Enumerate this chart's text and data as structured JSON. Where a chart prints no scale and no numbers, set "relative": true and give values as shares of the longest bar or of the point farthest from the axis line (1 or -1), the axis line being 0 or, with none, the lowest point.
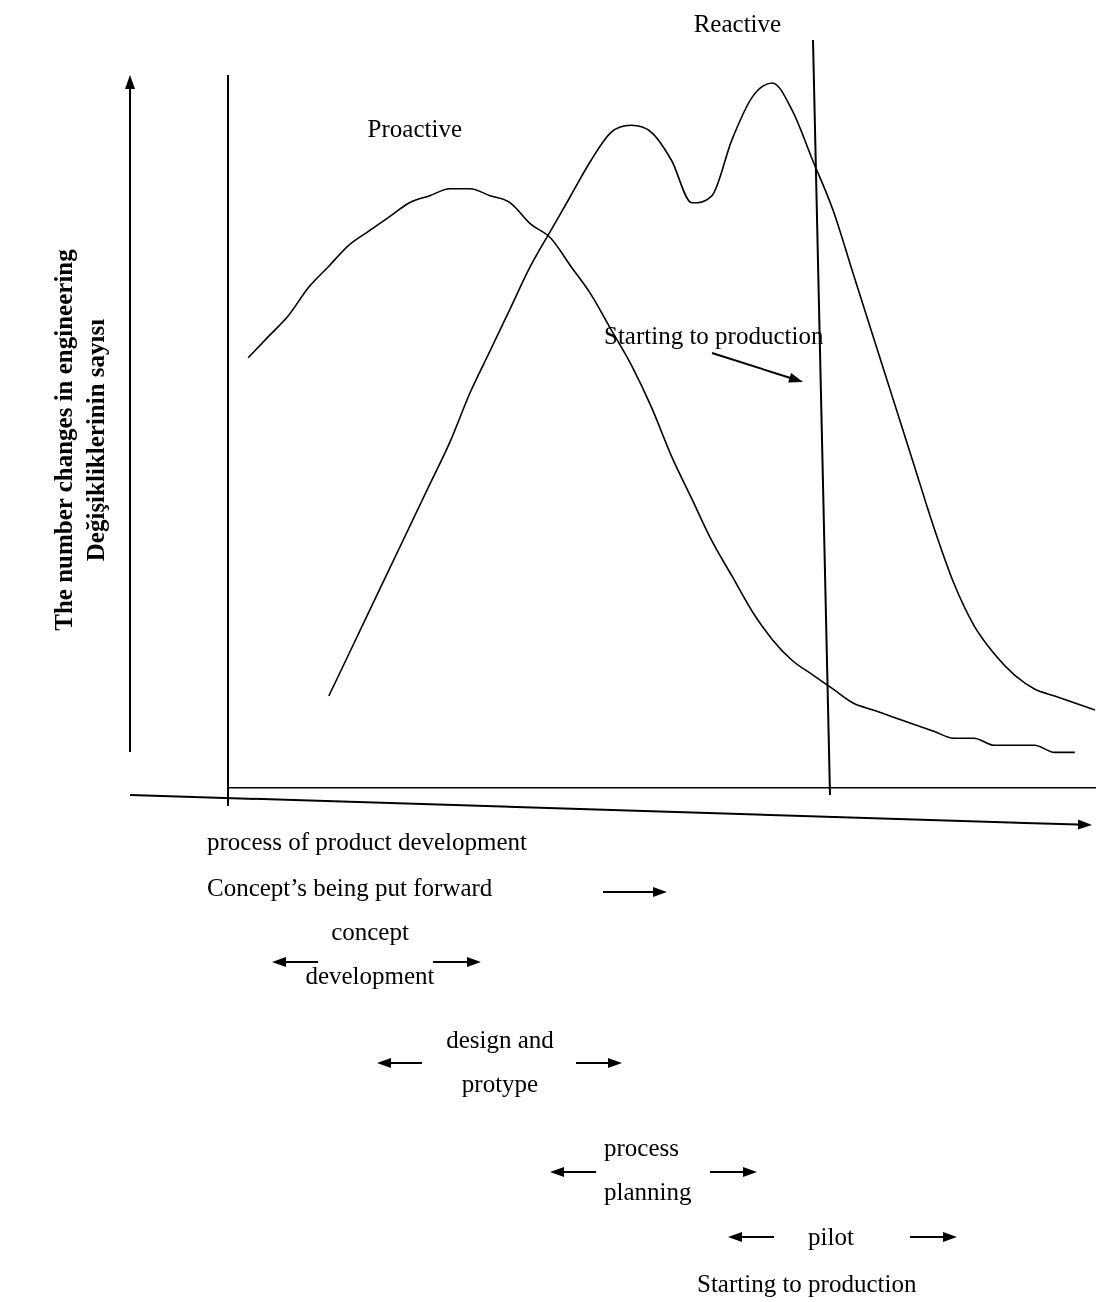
{
  "chart_data": {
    "type": "line",
    "relative": true,
    "ylabel": "The number changes in engineering\nDeğişikliklerinin sayısı",
    "categories": [
      null,
      null,
      null,
      null,
      null,
      null,
      null,
      null,
      null,
      null,
      null,
      null,
      null,
      null,
      null,
      null,
      null,
      null,
      null,
      null,
      null,
      null,
      null,
      null,
      null,
      null,
      null,
      null,
      null,
      null,
      null,
      null,
      null,
      null,
      null,
      null,
      null,
      null,
      null,
      null,
      null,
      null,
      null,
      null
    ],
    "series": [
      {
        "name": "Proactive",
        "color": "#000000",
        "values": [
          null,
          0.61,
          0.64,
          0.67,
          0.71,
          0.74,
          0.77,
          0.79,
          0.81,
          0.83,
          0.84,
          0.85,
          0.85,
          0.84,
          0.83,
          0.8,
          0.78,
          0.74,
          0.7,
          0.65,
          0.6,
          0.54,
          0.47,
          0.41,
          0.35,
          0.3,
          0.25,
          0.21,
          0.18,
          0.16,
          0.14,
          0.12,
          0.11,
          0.1,
          0.09,
          0.08,
          0.07,
          0.07,
          0.06,
          0.06,
          0.06,
          0.05,
          0.05,
          null
        ]
      },
      {
        "name": "Reactive",
        "color": "#000000",
        "values": [
          null,
          null,
          null,
          null,
          null,
          0.13,
          0.19,
          0.25,
          0.31,
          0.37,
          0.43,
          0.49,
          0.56,
          0.62,
          0.68,
          0.74,
          0.79,
          0.84,
          0.89,
          0.93,
          0.94,
          0.93,
          0.89,
          0.83,
          0.84,
          0.92,
          0.98,
          1.0,
          0.96,
          0.89,
          0.82,
          0.73,
          0.64,
          0.55,
          0.46,
          0.37,
          0.29,
          0.23,
          0.19,
          0.16,
          0.14,
          0.13,
          0.12,
          0.11
        ]
      }
    ],
    "annotations": [
      "Starting to production",
      "process of product development",
      "Concept’s being put forward",
      "concept development",
      "design and protype",
      "process planning",
      "pilot",
      "Starting to production"
    ],
    "grid": false,
    "legend": false,
    "marker": "none",
    "line_style": "solid"
  }
}
